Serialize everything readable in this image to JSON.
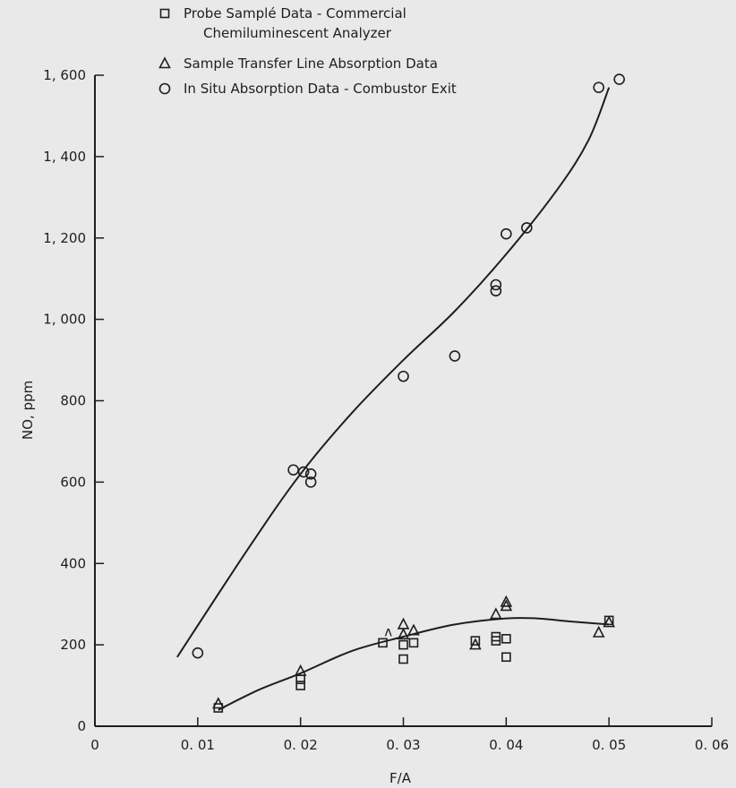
{
  "chart_data": {
    "type": "scatter",
    "xlabel": "F/A",
    "ylabel": "NO, ppm",
    "xlim": [
      0,
      0.06
    ],
    "ylim": [
      0,
      1600
    ],
    "x_ticks": [
      {
        "value": 0,
        "label": "0"
      },
      {
        "value": 0.01,
        "label": "0. 01"
      },
      {
        "value": 0.02,
        "label": "0. 02"
      },
      {
        "value": 0.03,
        "label": "0. 03"
      },
      {
        "value": 0.04,
        "label": "0. 04"
      },
      {
        "value": 0.05,
        "label": "0. 05"
      },
      {
        "value": 0.06,
        "label": "0. 06"
      }
    ],
    "y_ticks": [
      {
        "value": 0,
        "label": "0"
      },
      {
        "value": 200,
        "label": "200"
      },
      {
        "value": 400,
        "label": "400"
      },
      {
        "value": 600,
        "label": "600"
      },
      {
        "value": 800,
        "label": "800"
      },
      {
        "value": 1000,
        "label": "1, 000"
      },
      {
        "value": 1200,
        "label": "1, 200"
      },
      {
        "value": 1400,
        "label": "1, 400"
      },
      {
        "value": 1600,
        "label": "1, 600"
      }
    ],
    "grid": false,
    "legend_position": "top",
    "series": [
      {
        "name": "Probe Sample Data - Commercial Chemiluminescent Analyzer",
        "marker": "square",
        "points": [
          [
            0.012,
            45
          ],
          [
            0.02,
            115
          ],
          [
            0.02,
            100
          ],
          [
            0.028,
            205
          ],
          [
            0.03,
            200
          ],
          [
            0.03,
            165
          ],
          [
            0.031,
            205
          ],
          [
            0.037,
            210
          ],
          [
            0.039,
            220
          ],
          [
            0.039,
            210
          ],
          [
            0.04,
            215
          ],
          [
            0.04,
            170
          ],
          [
            0.05,
            260
          ]
        ]
      },
      {
        "name": "Sample Transfer Line Absorption Data",
        "marker": "triangle",
        "points": [
          [
            0.012,
            55
          ],
          [
            0.02,
            135
          ],
          [
            0.03,
            250
          ],
          [
            0.03,
            225
          ],
          [
            0.031,
            235
          ],
          [
            0.037,
            200
          ],
          [
            0.039,
            275
          ],
          [
            0.04,
            305
          ],
          [
            0.04,
            295
          ],
          [
            0.049,
            230
          ],
          [
            0.05,
            255
          ]
        ]
      },
      {
        "name": "In Situ Absorption Data - Combustor Exit",
        "marker": "circle",
        "points": [
          [
            0.01,
            180
          ],
          [
            0.0193,
            630
          ],
          [
            0.0203,
            625
          ],
          [
            0.021,
            620
          ],
          [
            0.021,
            600
          ],
          [
            0.03,
            860
          ],
          [
            0.035,
            910
          ],
          [
            0.039,
            1070
          ],
          [
            0.039,
            1085
          ],
          [
            0.04,
            1210
          ],
          [
            0.042,
            1225
          ],
          [
            0.049,
            1570
          ],
          [
            0.051,
            1590
          ]
        ]
      }
    ],
    "fit_curves": [
      {
        "for_series": "In Situ Absorption Data - Combustor Exit",
        "points": [
          [
            0.008,
            170
          ],
          [
            0.015,
            440
          ],
          [
            0.02,
            620
          ],
          [
            0.025,
            770
          ],
          [
            0.03,
            900
          ],
          [
            0.035,
            1020
          ],
          [
            0.04,
            1160
          ],
          [
            0.045,
            1320
          ],
          [
            0.048,
            1440
          ],
          [
            0.05,
            1570
          ]
        ]
      },
      {
        "for_series": "Probe / Sample Transfer Line",
        "points": [
          [
            0.012,
            40
          ],
          [
            0.016,
            90
          ],
          [
            0.02,
            130
          ],
          [
            0.025,
            185
          ],
          [
            0.03,
            220
          ],
          [
            0.035,
            250
          ],
          [
            0.04,
            265
          ],
          [
            0.043,
            265
          ],
          [
            0.046,
            258
          ],
          [
            0.05,
            250
          ]
        ]
      }
    ]
  },
  "legend": {
    "items": [
      {
        "marker": "square",
        "lines": [
          "Probe Samplé Data - Commercial",
          "Chemiluminescent Analyzer"
        ]
      },
      {
        "marker": "triangle",
        "lines": [
          "Sample Transfer Line Absorption Data"
        ]
      },
      {
        "marker": "circle",
        "lines": [
          "In Situ Absorption Data - Combustor Exit"
        ]
      }
    ]
  },
  "annotation": {
    "text": "ʌ",
    "x": 0.0285,
    "y": 230
  }
}
